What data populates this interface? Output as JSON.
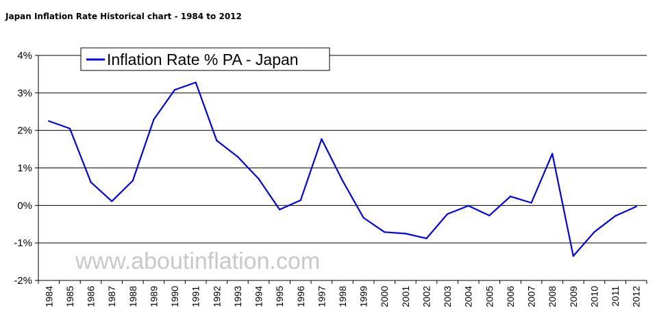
{
  "page": {
    "title": "Japan Inflation Rate Historical chart - 1984 to 2012"
  },
  "colors": {
    "series": "#0000ee",
    "grid": "#000000",
    "watermark": "#c8c8c8"
  },
  "chart_data": {
    "type": "line",
    "title": "Japan Inflation Rate Historical chart - 1984 to 2012",
    "xlabel": "",
    "ylabel": "",
    "ylim": [
      -2,
      4
    ],
    "yticks": [
      4,
      3,
      2,
      1,
      0,
      -1,
      -2
    ],
    "ytick_labels": [
      "4%",
      "3%",
      "2%",
      "1%",
      "0%",
      "-1%",
      "-2%"
    ],
    "grid": true,
    "legend_position": "top-left",
    "categories": [
      "1984",
      "1985",
      "1986",
      "1987",
      "1988",
      "1989",
      "1990",
      "1991",
      "1992",
      "1993",
      "1994",
      "1995",
      "1996",
      "1997",
      "1998",
      "1999",
      "2000",
      "2001",
      "2002",
      "2003",
      "2004",
      "2005",
      "2006",
      "2007",
      "2008",
      "2009",
      "2010",
      "2011",
      "2012"
    ],
    "series": [
      {
        "name": "Inflation Rate % PA - Japan",
        "values": [
          2.25,
          2.05,
          0.62,
          0.11,
          0.66,
          2.29,
          3.08,
          3.28,
          1.73,
          1.3,
          0.71,
          -0.11,
          0.14,
          1.77,
          0.66,
          -0.33,
          -0.71,
          -0.75,
          -0.88,
          -0.23,
          -0.01,
          -0.27,
          0.24,
          0.07,
          1.38,
          -1.35,
          -0.71,
          -0.28,
          -0.03
        ]
      }
    ],
    "watermark": "www.aboutinflation.com"
  }
}
